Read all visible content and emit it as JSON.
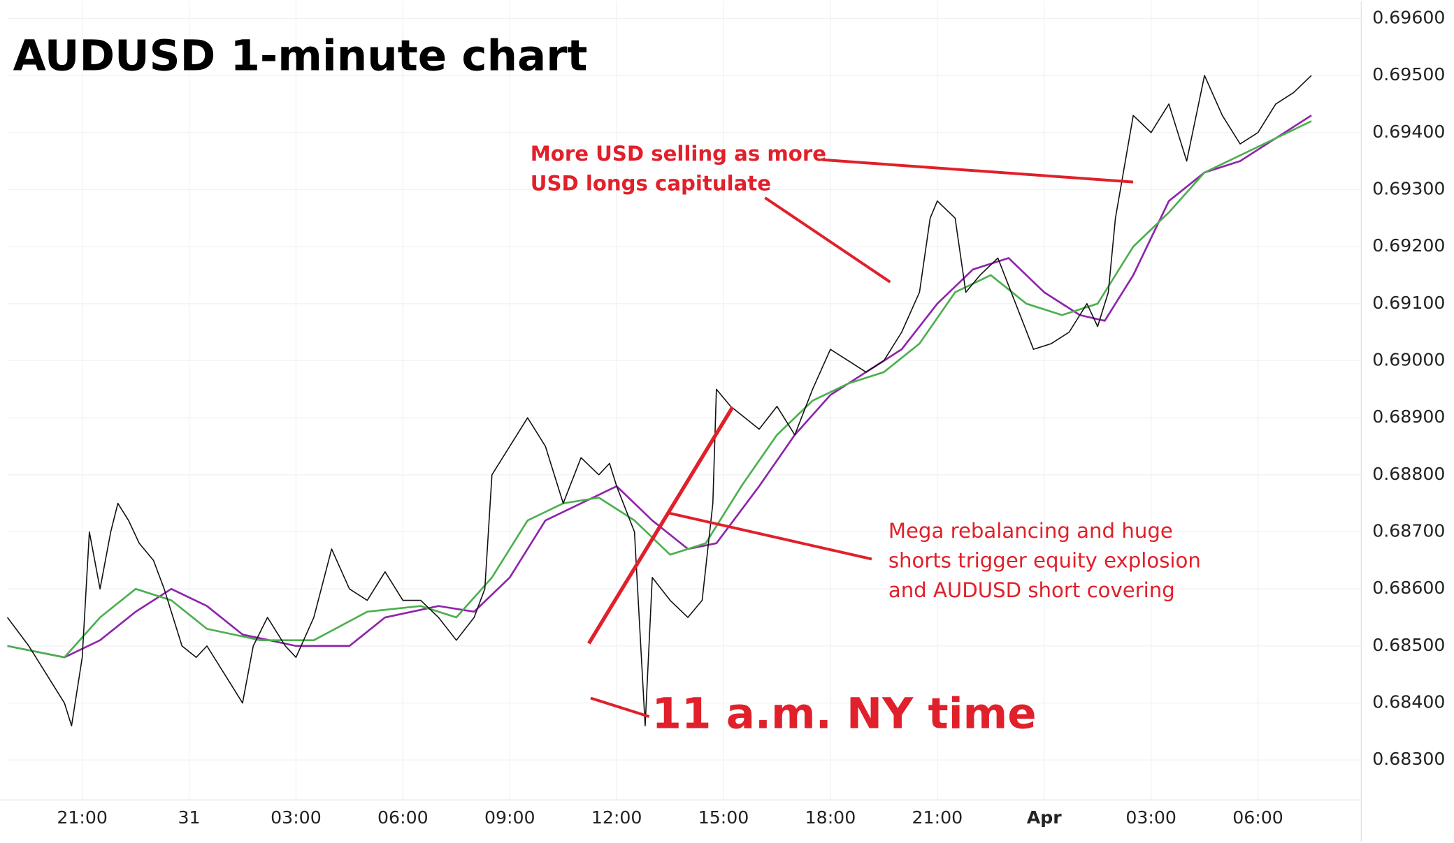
{
  "chart_data": {
    "type": "line",
    "title": "AUDUSD 1-minute chart",
    "xlim": [
      18.9,
      56.9
    ],
    "xticks": [
      {
        "value": 21,
        "label": "21:00"
      },
      {
        "value": 24,
        "label": "31"
      },
      {
        "value": 27,
        "label": "03:00"
      },
      {
        "value": 30,
        "label": "06:00"
      },
      {
        "value": 33,
        "label": "09:00"
      },
      {
        "value": 36,
        "label": "12:00"
      },
      {
        "value": 39,
        "label": "15:00"
      },
      {
        "value": 42,
        "label": "18:00"
      },
      {
        "value": 45,
        "label": "21:00"
      },
      {
        "value": 48,
        "label": "Apr"
      },
      {
        "value": 51,
        "label": "03:00"
      },
      {
        "value": 54,
        "label": "06:00"
      }
    ],
    "ylim": [
      0.6823,
      0.6963
    ],
    "yticks": [
      {
        "value": 0.683,
        "label": "0.68300"
      },
      {
        "value": 0.684,
        "label": "0.68400"
      },
      {
        "value": 0.685,
        "label": "0.68500"
      },
      {
        "value": 0.686,
        "label": "0.68600"
      },
      {
        "value": 0.687,
        "label": "0.68700"
      },
      {
        "value": 0.688,
        "label": "0.68800"
      },
      {
        "value": 0.689,
        "label": "0.68900"
      },
      {
        "value": 0.69,
        "label": "0.69000"
      },
      {
        "value": 0.691,
        "label": "0.69100"
      },
      {
        "value": 0.692,
        "label": "0.69200"
      },
      {
        "value": 0.693,
        "label": "0.69300"
      },
      {
        "value": 0.694,
        "label": "0.69400"
      },
      {
        "value": 0.695,
        "label": "0.69500"
      },
      {
        "value": 0.696,
        "label": "0.69600"
      }
    ],
    "grid": true,
    "series": [
      {
        "color": "#111111",
        "x": [
          18.9,
          19.5,
          20.0,
          20.5,
          20.7,
          21.0,
          21.2,
          21.5,
          21.8,
          22.0,
          22.3,
          22.6,
          23.0,
          23.3,
          23.8,
          24.2,
          24.5,
          25.0,
          25.5,
          25.8,
          26.2,
          26.7,
          27.0,
          27.5,
          28.0,
          28.5,
          29.0,
          29.5,
          30.0,
          30.5,
          31.0,
          31.5,
          32.0,
          32.3,
          32.5,
          33.0,
          33.5,
          34.0,
          34.5,
          35.0,
          35.5,
          35.8,
          36.0,
          36.5,
          36.8,
          37.0,
          37.5,
          38.0,
          38.4,
          38.7,
          38.8,
          39.2,
          39.6,
          40.0,
          40.5,
          41.0,
          41.5,
          42.0,
          42.5,
          43.0,
          43.5,
          44.0,
          44.5,
          44.8,
          45.0,
          45.5,
          45.8,
          46.2,
          46.7,
          47.2,
          47.7,
          48.2,
          48.7,
          49.2,
          49.5,
          49.8,
          50.0,
          50.5,
          51.0,
          51.5,
          52.0,
          52.5,
          53.0,
          53.5,
          54.0,
          54.5,
          55.0,
          55.5
        ],
        "values": [
          0.6855,
          0.685,
          0.6845,
          0.684,
          0.6836,
          0.6848,
          0.687,
          0.686,
          0.687,
          0.6875,
          0.6872,
          0.6868,
          0.6865,
          0.686,
          0.685,
          0.6848,
          0.685,
          0.6845,
          0.684,
          0.685,
          0.6855,
          0.685,
          0.6848,
          0.6855,
          0.6867,
          0.686,
          0.6858,
          0.6863,
          0.6858,
          0.6858,
          0.6855,
          0.6851,
          0.6855,
          0.686,
          0.688,
          0.6885,
          0.689,
          0.6885,
          0.6875,
          0.6883,
          0.688,
          0.6882,
          0.6878,
          0.687,
          0.6836,
          0.6862,
          0.6858,
          0.6855,
          0.6858,
          0.6875,
          0.6895,
          0.6892,
          0.689,
          0.6888,
          0.6892,
          0.6887,
          0.6895,
          0.6902,
          0.69,
          0.6898,
          0.69,
          0.6905,
          0.6912,
          0.6925,
          0.6928,
          0.6925,
          0.6912,
          0.6915,
          0.6918,
          0.691,
          0.6902,
          0.6903,
          0.6905,
          0.691,
          0.6906,
          0.6912,
          0.6925,
          0.6943,
          0.694,
          0.6945,
          0.6935,
          0.695,
          0.6943,
          0.6938,
          0.694,
          0.6945,
          0.6947,
          0.695
        ]
      },
      {
        "color": "#4caf50",
        "x": [
          18.9,
          20.5,
          21.5,
          22.5,
          23.5,
          24.5,
          26.0,
          27.5,
          29.0,
          30.5,
          31.5,
          32.5,
          33.5,
          34.5,
          35.5,
          36.5,
          37.5,
          38.5,
          39.5,
          40.5,
          41.5,
          42.5,
          43.5,
          44.5,
          45.5,
          46.5,
          47.5,
          48.5,
          49.5,
          50.5,
          51.5,
          52.5,
          53.5,
          54.5,
          55.5
        ],
        "values": [
          0.685,
          0.6848,
          0.6855,
          0.686,
          0.6858,
          0.6853,
          0.6851,
          0.6851,
          0.6856,
          0.6857,
          0.6855,
          0.6862,
          0.6872,
          0.6875,
          0.6876,
          0.6872,
          0.6866,
          0.6868,
          0.6878,
          0.6887,
          0.6893,
          0.6896,
          0.6898,
          0.6903,
          0.6912,
          0.6915,
          0.691,
          0.6908,
          0.691,
          0.692,
          0.6926,
          0.6933,
          0.6936,
          0.6939,
          0.6942
        ]
      },
      {
        "color": "#8e24aa",
        "x": [
          18.9,
          20.5,
          21.5,
          22.5,
          23.5,
          24.5,
          25.5,
          27.0,
          28.5,
          29.5,
          31.0,
          32.0,
          33.0,
          34.0,
          35.0,
          36.0,
          37.0,
          38.0,
          38.8,
          40.0,
          41.0,
          42.0,
          43.0,
          44.0,
          45.0,
          46.0,
          47.0,
          48.0,
          49.0,
          49.7,
          50.5,
          51.5,
          52.5,
          53.5,
          54.5,
          55.5
        ],
        "values": [
          0.685,
          0.6848,
          0.6851,
          0.6856,
          0.686,
          0.6857,
          0.6852,
          0.685,
          0.685,
          0.6855,
          0.6857,
          0.6856,
          0.6862,
          0.6872,
          0.6875,
          0.6878,
          0.6872,
          0.6867,
          0.6868,
          0.6878,
          0.6887,
          0.6894,
          0.6898,
          0.6902,
          0.691,
          0.6916,
          0.6918,
          0.6912,
          0.6908,
          0.6907,
          0.6915,
          0.6928,
          0.6933,
          0.6935,
          0.6939,
          0.6943
        ]
      }
    ],
    "annotations": [
      {
        "lines": [
          "More USD selling as more",
          "USD longs capitulate"
        ]
      },
      {
        "lines": [
          "Mega rebalancing and huge",
          "shorts trigger equity explosion",
          "and AUDUSD short covering"
        ]
      },
      {
        "lines": [
          "11 a.m. NY time"
        ]
      }
    ]
  }
}
